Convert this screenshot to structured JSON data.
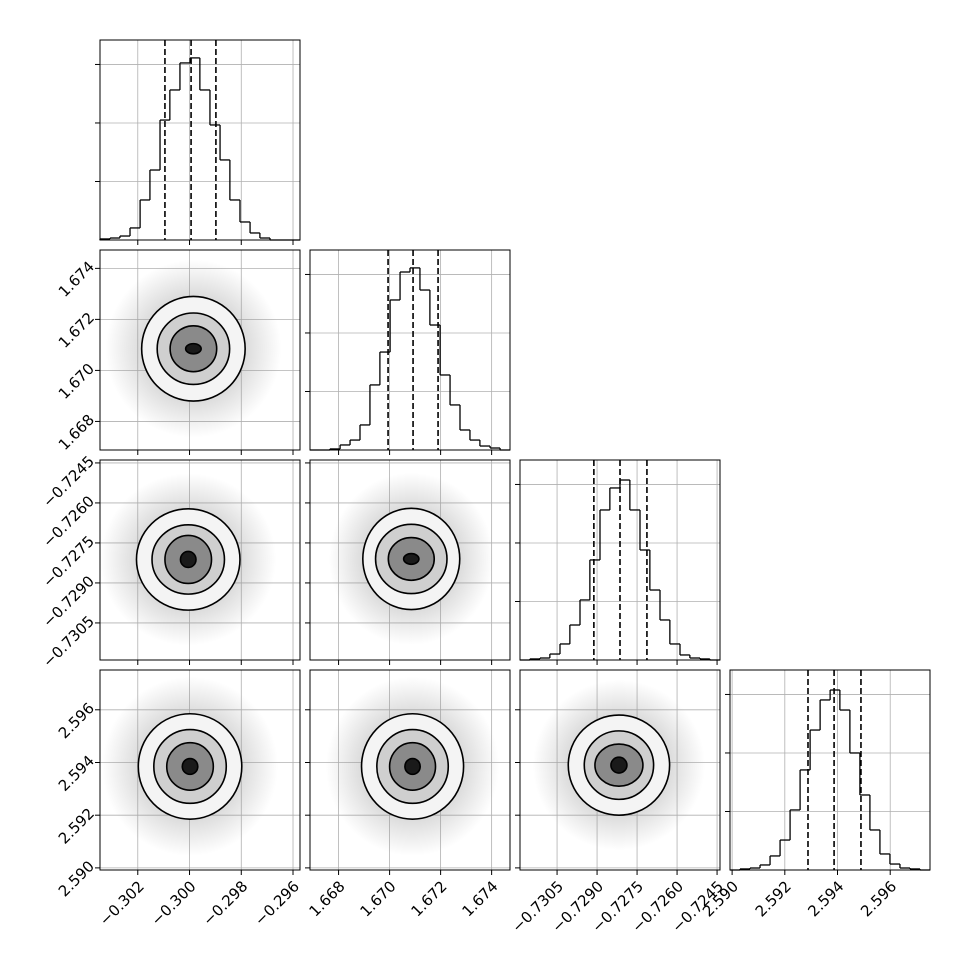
{
  "chart_data": {
    "type": "corner",
    "colors": {
      "line": "#000000",
      "grid": "#b0b0b0",
      "cloud": "#8c8c8c",
      "fills": [
        "#f4f4f4",
        "#cfcfcf",
        "#8a8a8a",
        "#1a1a1a"
      ]
    },
    "grid": true,
    "params": [
      {
        "lim": [
          -0.30346,
          -0.29573
        ],
        "ticks": [
          {
            "value": -0.302,
            "label": "−0.302"
          },
          {
            "value": -0.3,
            "label": "−0.300"
          },
          {
            "value": -0.298,
            "label": "−0.298"
          },
          {
            "value": -0.296,
            "label": "−0.296"
          }
        ],
        "quantiles": [
          -0.30095,
          -0.29994,
          -0.29898
        ],
        "hist": {
          "ylim": [
            0,
            1709
          ],
          "yticks": [
            500,
            1000,
            1500
          ],
          "bins": [
            -0.30346,
            -0.30307,
            -0.30269,
            -0.3023,
            -0.30191,
            -0.30153,
            -0.30114,
            -0.30076,
            -0.30037,
            -0.29998,
            -0.2996,
            -0.29921,
            -0.29882,
            -0.29844,
            -0.29805,
            -0.29766,
            -0.29728,
            -0.29689,
            -0.2965,
            -0.29612,
            -0.29573
          ],
          "counts": [
            9,
            17,
            34,
            103,
            342,
            598,
            1025,
            1282,
            1513,
            1556,
            1282,
            983,
            684,
            342,
            154,
            60,
            17,
            0,
            0,
            0
          ]
        }
      },
      {
        "lim": [
          1.66688,
          1.67472
        ],
        "ticks": [
          1.668,
          {
            "value": 1.67,
            "label": "1.670"
          },
          1.672,
          1.674
        ],
        "quantiles": [
          1.66994,
          1.67092,
          1.6719
        ],
        "hist": {
          "ylim": [
            0,
            1709
          ],
          "yticks": [
            500,
            1000,
            1500
          ],
          "bins": [
            1.66688,
            1.66727,
            1.66766,
            1.66806,
            1.66845,
            1.66884,
            1.66923,
            1.66962,
            1.67002,
            1.67041,
            1.6708,
            1.67119,
            1.67158,
            1.67198,
            1.67237,
            1.67276,
            1.67315,
            1.67354,
            1.67394,
            1.67433,
            1.67472
          ],
          "counts": [
            0,
            0,
            9,
            43,
            85,
            214,
            556,
            837,
            1282,
            1521,
            1556,
            1367,
            1068,
            641,
            385,
            171,
            85,
            34,
            17,
            0
          ]
        }
      },
      {
        "lim": [
          -0.73189,
          -0.72439
        ],
        "ticks": [
          {
            "value": -0.7305,
            "label": "−0.7305"
          },
          {
            "value": -0.729,
            "label": "−0.7290"
          },
          {
            "value": -0.7275,
            "label": "−0.7275"
          },
          {
            "value": -0.726,
            "label": "−0.7260"
          },
          {
            "value": -0.7245,
            "label": "−0.7245"
          }
        ],
        "quantiles": [
          -0.72912,
          -0.72814,
          -0.72713
        ],
        "hist": {
          "ylim": [
            0,
            1709
          ],
          "yticks": [
            500,
            1000,
            1500
          ],
          "bins": [
            -0.73189,
            -0.73152,
            -0.73114,
            -0.73077,
            -0.73039,
            -0.73002,
            -0.72964,
            -0.72927,
            -0.72889,
            -0.72852,
            -0.72814,
            -0.72777,
            -0.72739,
            -0.72702,
            -0.72664,
            -0.72627,
            -0.72589,
            -0.72552,
            -0.72514,
            -0.72477,
            -0.72439
          ],
          "counts": [
            0,
            9,
            17,
            51,
            137,
            299,
            513,
            855,
            1282,
            1470,
            1538,
            1282,
            940,
            598,
            342,
            137,
            43,
            17,
            9,
            0
          ]
        }
      },
      {
        "lim": [
          2.58992,
          2.59751
        ],
        "ticks": [
          {
            "value": 2.59,
            "label": "2.590"
          },
          2.592,
          2.594,
          2.596
        ],
        "quantiles": [
          2.59288,
          2.59387,
          2.59489
        ],
        "hist": {
          "ylim": [
            0,
            1709
          ],
          "yticks": [
            500,
            1000,
            1500
          ],
          "bins": [
            2.58992,
            2.5903,
            2.59068,
            2.59106,
            2.59144,
            2.59182,
            2.5922,
            2.59258,
            2.59296,
            2.59334,
            2.59372,
            2.59409,
            2.59447,
            2.59485,
            2.59523,
            2.59561,
            2.59599,
            2.59637,
            2.59675,
            2.59713,
            2.59751
          ],
          "counts": [
            0,
            9,
            17,
            43,
            120,
            256,
            513,
            855,
            1196,
            1453,
            1538,
            1367,
            1000,
            641,
            342,
            137,
            51,
            17,
            9,
            0
          ]
        }
      }
    ],
    "pairs": [
      {
        "x_param": 0,
        "y_param": 1,
        "center": [
          -0.29985,
          1.67085
        ],
        "rx": [
          0.0003,
          0.0009,
          0.0014,
          0.002
        ],
        "ry": [
          0.0002,
          0.0009,
          0.0014,
          0.00205
        ]
      },
      {
        "x_param": 0,
        "y_param": 2,
        "center": [
          -0.30005,
          -0.72812
        ],
        "rx": [
          0.0003,
          0.0009,
          0.0014,
          0.002
        ],
        "ry": [
          0.0003,
          0.0009,
          0.0013,
          0.0019
        ]
      },
      {
        "x_param": 1,
        "y_param": 2,
        "center": [
          1.67085,
          -0.7281
        ],
        "rx": [
          0.0003,
          0.0009,
          0.0014,
          0.0019
        ],
        "ry": [
          0.0002,
          0.0008,
          0.0013,
          0.0019
        ]
      },
      {
        "x_param": 0,
        "y_param": 3,
        "center": [
          -0.29998,
          2.59385
        ],
        "rx": [
          0.0003,
          0.0009,
          0.0014,
          0.002
        ],
        "ry": [
          0.0003,
          0.0009,
          0.0014,
          0.002
        ]
      },
      {
        "x_param": 1,
        "y_param": 3,
        "center": [
          1.6709,
          2.59385
        ],
        "rx": [
          0.0003,
          0.0009,
          0.0014,
          0.002
        ],
        "ry": [
          0.0003,
          0.0009,
          0.0014,
          0.002
        ]
      },
      {
        "x_param": 2,
        "y_param": 3,
        "center": [
          -0.72818,
          2.5939
        ],
        "rx": [
          0.0003,
          0.0009,
          0.0013,
          0.0019
        ],
        "ry": [
          0.0003,
          0.0008,
          0.0013,
          0.0019
        ]
      }
    ]
  }
}
